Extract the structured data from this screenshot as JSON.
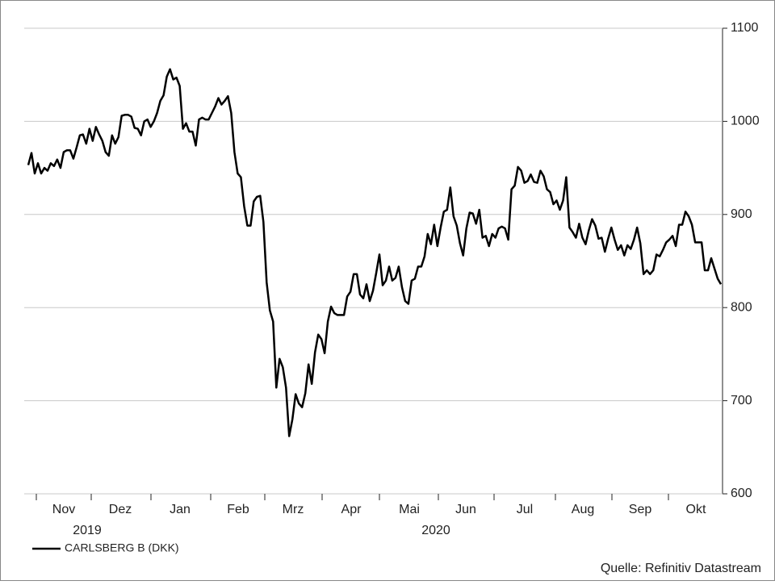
{
  "chart_data": {
    "type": "line",
    "months": [
      "Nov",
      "Dez",
      "Jan",
      "Feb",
      "Mrz",
      "Apr",
      "Mai",
      "Jun",
      "Jul",
      "Aug",
      "Sep",
      "Okt"
    ],
    "years": [
      "2019",
      "2020"
    ],
    "source": "Quelle: Refinitiv Datastream",
    "ylim": [
      600,
      1100
    ],
    "yticks": [
      600,
      700,
      800,
      900,
      1000,
      1100
    ],
    "grid": true,
    "series": [
      {
        "name": "CARLSBERG B (DKK)",
        "color": "#000000",
        "values": [
          953,
          966,
          944,
          955,
          944,
          950,
          947,
          955,
          952,
          959,
          950,
          967,
          969,
          969,
          960,
          972,
          985,
          986,
          976,
          992,
          979,
          994,
          986,
          979,
          967,
          963,
          985,
          976,
          983,
          1006,
          1007,
          1007,
          1005,
          993,
          992,
          985,
          1000,
          1002,
          994,
          1000,
          1009,
          1022,
          1028,
          1048,
          1056,
          1045,
          1047,
          1038,
          992,
          998,
          989,
          989,
          974,
          1002,
          1004,
          1002,
          1002,
          1009,
          1016,
          1025,
          1018,
          1022,
          1027,
          1009,
          967,
          944,
          940,
          909,
          888,
          888,
          914,
          919,
          920,
          892,
          827,
          797,
          785,
          714,
          745,
          736,
          714,
          662,
          680,
          707,
          697,
          693,
          708,
          739,
          718,
          752,
          771,
          766,
          751,
          785,
          801,
          794,
          792,
          792,
          792,
          812,
          817,
          836,
          836,
          814,
          810,
          825,
          807,
          818,
          837,
          857,
          824,
          829,
          844,
          829,
          832,
          844,
          822,
          807,
          804,
          829,
          831,
          844,
          844,
          855,
          879,
          868,
          889,
          866,
          886,
          903,
          905,
          929,
          898,
          888,
          869,
          856,
          885,
          902,
          901,
          890,
          905,
          875,
          877,
          866,
          879,
          875,
          885,
          887,
          885,
          873,
          927,
          931,
          951,
          947,
          934,
          936,
          943,
          935,
          934,
          947,
          941,
          927,
          924,
          911,
          915,
          905,
          915,
          940,
          886,
          881,
          875,
          890,
          875,
          868,
          883,
          895,
          888,
          874,
          875,
          860,
          874,
          886,
          873,
          862,
          867,
          856,
          867,
          863,
          873,
          886,
          869,
          836,
          840,
          836,
          840,
          857,
          855,
          862,
          870,
          873,
          877,
          866,
          889,
          889,
          903,
          898,
          889,
          870,
          870,
          870,
          840,
          840,
          853,
          842,
          831,
          825
        ]
      }
    ]
  }
}
